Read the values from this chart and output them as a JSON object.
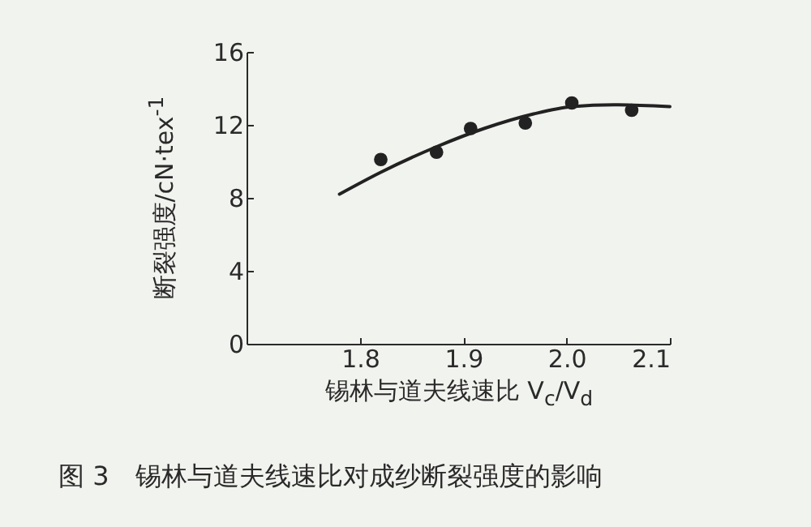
{
  "chart_data": {
    "type": "scatter",
    "xlabel": "锡林与道夫线速比 V$_{c}$/V$_{d}$",
    "ylabel": "断裂强度/cN·tex$^{-1}$",
    "annotations": [
      "图 3　锡林与道夫线速比对成纱断裂强度的影响"
    ],
    "xlim": [
      1.69,
      2.1
    ],
    "xticks": [
      1.8,
      1.9,
      {
        "value": 2.0,
        "label": "2.0"
      },
      2.1
    ],
    "ylim": [
      0,
      16
    ],
    "yticks": [
      0,
      4,
      8,
      12,
      16
    ],
    "series": [
      {
        "marker": "circle",
        "color": "#222222",
        "x": [
          1.82,
          1.874,
          1.907,
          1.96,
          2.005,
          2.063
        ],
        "values": [
          10.1,
          10.5,
          11.8,
          12.1,
          13.2,
          12.8
        ]
      },
      {
        "type": "line",
        "line_style": "solid",
        "color": "#222222",
        "x": [
          1.78,
          1.82,
          1.874,
          1.92,
          1.968,
          2.005,
          2.046,
          2.1
        ],
        "values": [
          8.2,
          9.4,
          10.8,
          11.8,
          12.6,
          13.0,
          13.1,
          13.0
        ]
      }
    ]
  }
}
